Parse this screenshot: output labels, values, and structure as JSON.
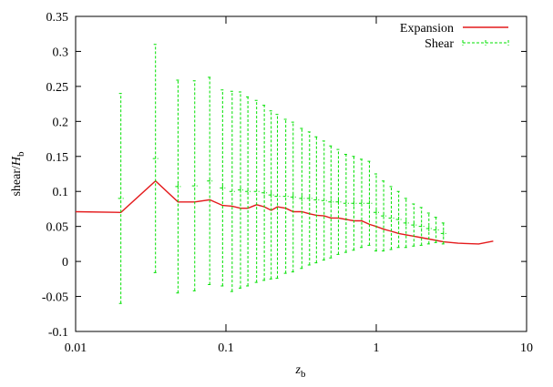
{
  "chart_data": {
    "type": "line",
    "x_label": [
      "z",
      "b"
    ],
    "y_label": [
      "shear/",
      "H",
      "b"
    ],
    "xlim": [
      0.01,
      10
    ],
    "xticks": [
      0.01,
      0.1,
      1,
      10
    ],
    "xscale": "log",
    "ylim": [
      -0.1,
      0.35
    ],
    "yticks": [
      -0.1,
      -0.05,
      0,
      0.05,
      0.1,
      0.15,
      0.2,
      0.25,
      0.3,
      0.35
    ],
    "legend": "top-right",
    "series": [
      {
        "name": "Expansion",
        "color": "#e41a1c",
        "style": "line",
        "x": [
          0.01,
          0.02,
          0.034,
          0.048,
          0.062,
          0.078,
          0.095,
          0.11,
          0.125,
          0.14,
          0.16,
          0.18,
          0.2,
          0.22,
          0.25,
          0.28,
          0.32,
          0.36,
          0.4,
          0.45,
          0.5,
          0.56,
          0.63,
          0.71,
          0.8,
          0.9,
          1.0,
          1.12,
          1.26,
          1.41,
          1.58,
          1.78,
          2.0,
          2.24,
          2.5,
          2.8,
          3.5,
          4.8,
          6.0
        ],
        "values": [
          0.071,
          0.07,
          0.115,
          0.085,
          0.085,
          0.088,
          0.08,
          0.079,
          0.076,
          0.076,
          0.081,
          0.078,
          0.073,
          0.078,
          0.076,
          0.071,
          0.071,
          0.068,
          0.066,
          0.065,
          0.062,
          0.062,
          0.06,
          0.058,
          0.058,
          0.053,
          0.05,
          0.046,
          0.043,
          0.04,
          0.038,
          0.036,
          0.034,
          0.032,
          0.03,
          0.028,
          0.026,
          0.025,
          0.029
        ]
      },
      {
        "name": "Shear",
        "color": "#00e000",
        "style": "errorbars",
        "x": [
          0.02,
          0.034,
          0.048,
          0.062,
          0.078,
          0.095,
          0.11,
          0.125,
          0.14,
          0.16,
          0.18,
          0.2,
          0.22,
          0.25,
          0.28,
          0.32,
          0.36,
          0.4,
          0.45,
          0.5,
          0.56,
          0.63,
          0.71,
          0.8,
          0.9,
          1.0,
          1.12,
          1.26,
          1.41,
          1.58,
          1.78,
          2.0,
          2.24,
          2.5,
          2.8
        ],
        "values": [
          0.09,
          0.147,
          0.107,
          0.108,
          0.115,
          0.105,
          0.1,
          0.102,
          0.1,
          0.1,
          0.098,
          0.095,
          0.093,
          0.093,
          0.092,
          0.09,
          0.09,
          0.088,
          0.087,
          0.085,
          0.085,
          0.083,
          0.083,
          0.083,
          0.083,
          0.07,
          0.065,
          0.062,
          0.06,
          0.055,
          0.052,
          0.05,
          0.047,
          0.045,
          0.04
        ],
        "errors": [
          0.15,
          0.163,
          0.152,
          0.15,
          0.148,
          0.14,
          0.143,
          0.14,
          0.135,
          0.13,
          0.125,
          0.12,
          0.117,
          0.11,
          0.107,
          0.1,
          0.095,
          0.09,
          0.085,
          0.08,
          0.075,
          0.07,
          0.067,
          0.063,
          0.06,
          0.055,
          0.05,
          0.045,
          0.04,
          0.035,
          0.03,
          0.027,
          0.022,
          0.018,
          0.015
        ]
      }
    ]
  }
}
